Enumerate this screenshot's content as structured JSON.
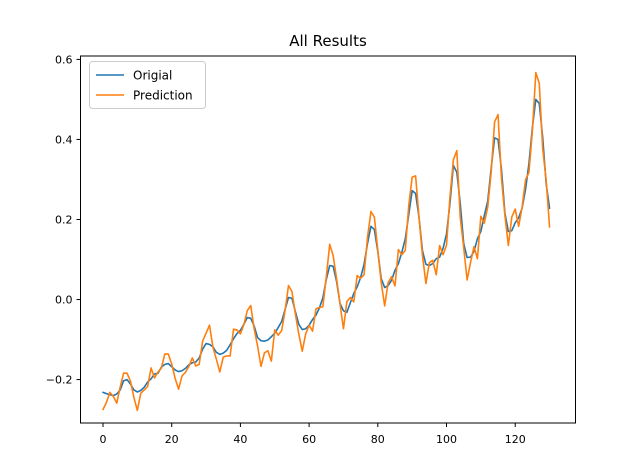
{
  "chart_data": {
    "type": "line",
    "title": "All Results",
    "xlabel": "",
    "ylabel": "",
    "grid": false,
    "legend_position": "upper left",
    "legend": [
      {
        "label": "Origial",
        "color": "#1f77b4"
      },
      {
        "label": "Prediction",
        "color": "#ff7f0e"
      }
    ],
    "x_ticks": [
      0,
      20,
      40,
      60,
      80,
      100,
      120
    ],
    "y_ticks": [
      -0.2,
      0.0,
      0.2,
      0.4,
      0.6
    ],
    "xlim": [
      -6.55,
      137.55
    ],
    "ylim": [
      -0.3085,
      0.6085
    ],
    "x_start": 0,
    "x_step": 1,
    "n_points": 131,
    "series": [
      {
        "name": "Origial",
        "color": "#1f77b4",
        "values": [
          -0.232,
          -0.235,
          -0.238,
          -0.24,
          -0.236,
          -0.226,
          -0.203,
          -0.2,
          -0.211,
          -0.226,
          -0.231,
          -0.227,
          -0.219,
          -0.206,
          -0.198,
          -0.186,
          -0.184,
          -0.169,
          -0.162,
          -0.16,
          -0.168,
          -0.176,
          -0.18,
          -0.178,
          -0.172,
          -0.163,
          -0.158,
          -0.156,
          -0.146,
          -0.124,
          -0.11,
          -0.112,
          -0.118,
          -0.132,
          -0.137,
          -0.134,
          -0.127,
          -0.113,
          -0.098,
          -0.085,
          -0.077,
          -0.062,
          -0.045,
          -0.047,
          -0.066,
          -0.095,
          -0.103,
          -0.104,
          -0.101,
          -0.093,
          -0.084,
          -0.07,
          -0.055,
          -0.025,
          0.005,
          0.003,
          -0.03,
          -0.062,
          -0.075,
          -0.073,
          -0.064,
          -0.05,
          -0.039,
          -0.021,
          0.004,
          0.05,
          0.085,
          0.083,
          0.045,
          -0.01,
          -0.028,
          -0.032,
          -0.008,
          0.015,
          0.032,
          0.055,
          0.088,
          0.14,
          0.183,
          0.175,
          0.12,
          0.052,
          0.03,
          0.035,
          0.048,
          0.073,
          0.09,
          0.118,
          0.152,
          0.212,
          0.272,
          0.265,
          0.205,
          0.122,
          0.088,
          0.085,
          0.09,
          0.102,
          0.106,
          0.128,
          0.164,
          0.24,
          0.335,
          0.318,
          0.24,
          0.14,
          0.105,
          0.106,
          0.12,
          0.152,
          0.17,
          0.21,
          0.246,
          0.328,
          0.404,
          0.4,
          0.325,
          0.216,
          0.17,
          0.172,
          0.192,
          0.204,
          0.228,
          0.275,
          0.34,
          0.43,
          0.5,
          0.49,
          0.405,
          0.29,
          0.228
        ]
      },
      {
        "name": "Prediction",
        "color": "#ff7f0e",
        "values": [
          -0.275,
          -0.257,
          -0.232,
          -0.242,
          -0.259,
          -0.219,
          -0.184,
          -0.184,
          -0.204,
          -0.245,
          -0.277,
          -0.234,
          -0.226,
          -0.217,
          -0.171,
          -0.196,
          -0.181,
          -0.171,
          -0.136,
          -0.136,
          -0.161,
          -0.197,
          -0.224,
          -0.191,
          -0.182,
          -0.167,
          -0.146,
          -0.166,
          -0.162,
          -0.104,
          -0.084,
          -0.064,
          -0.119,
          -0.149,
          -0.181,
          -0.144,
          -0.141,
          -0.141,
          -0.074,
          -0.076,
          -0.086,
          -0.063,
          -0.028,
          -0.015,
          -0.073,
          -0.116,
          -0.167,
          -0.133,
          -0.128,
          -0.154,
          -0.076,
          -0.089,
          -0.078,
          -0.028,
          0.035,
          0.02,
          -0.036,
          -0.086,
          -0.129,
          -0.086,
          -0.064,
          -0.079,
          -0.023,
          -0.02,
          -0.018,
          0.057,
          0.138,
          0.11,
          0.052,
          -0.011,
          -0.073,
          -0.005,
          0.005,
          -0.006,
          0.06,
          0.053,
          0.062,
          0.155,
          0.22,
          0.206,
          0.123,
          0.042,
          -0.016,
          0.042,
          0.057,
          0.034,
          0.125,
          0.112,
          0.123,
          0.234,
          0.306,
          0.309,
          0.205,
          0.11,
          0.04,
          0.092,
          0.098,
          0.062,
          0.135,
          0.112,
          0.136,
          0.256,
          0.349,
          0.372,
          0.205,
          0.13,
          0.049,
          0.093,
          0.132,
          0.102,
          0.208,
          0.191,
          0.231,
          0.318,
          0.444,
          0.462,
          0.303,
          0.21,
          0.135,
          0.206,
          0.226,
          0.183,
          0.23,
          0.299,
          0.318,
          0.422,
          0.567,
          0.54,
          0.377,
          0.299,
          0.181
        ]
      }
    ]
  }
}
